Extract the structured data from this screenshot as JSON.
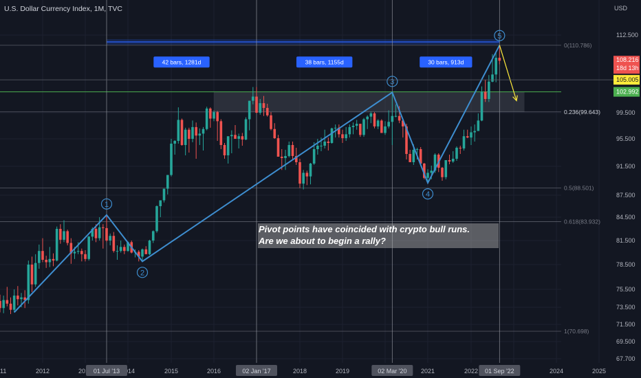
{
  "header": {
    "title": "U.S. Dollar Currency Index, 1M, TVC",
    "unit": "USD"
  },
  "annotation": {
    "line1": "Pivot points have coincided with crypto bull runs.",
    "line2": "Are we about to begin a rally?"
  },
  "colors": {
    "background": "#131722",
    "bull": "#26a69a",
    "bear": "#ef5350",
    "pattern": "#3e8ed0",
    "fib": "#787b86",
    "zone": "#4a4e58",
    "projection": "#ffeb3b"
  },
  "chart_data": {
    "type": "line",
    "series": [
      {
        "values": [
          {
            "x": "2011-05",
            "y": 72.9
          },
          {
            "x": "2013-07",
            "y": 84.8
          },
          {
            "x": "2014-05",
            "y": 78.9
          },
          {
            "x": "2020-03",
            "y": 102.9
          },
          {
            "x": "2021-01",
            "y": 89.2
          },
          {
            "x": "2022-09",
            "y": 110.8
          }
        ]
      },
      {
        "values": [
          {
            "x": "2022-09",
            "y": 110.8
          },
          {
            "x": "2023-01",
            "y": 101.5
          }
        ]
      }
    ],
    "pivot_labels": [
      "1",
      "2",
      "3",
      "4",
      "5"
    ],
    "y_ticks": [
      "112.500",
      "99.500",
      "95.500",
      "91.500",
      "87.500",
      "84.500",
      "81.500",
      "78.500",
      "75.500",
      "73.500",
      "71.500",
      "69.500",
      "67.700"
    ],
    "x_ticks": [
      "11",
      "2012",
      "2013",
      "2014",
      "2015",
      "2016",
      "2018",
      "2019",
      "2021",
      "2022",
      "2024",
      "2025"
    ],
    "vertical_markers": [
      "01 Jul '13",
      "02 Jan '17",
      "02 Mar '20",
      "01 Sep '22"
    ],
    "fib_levels": [
      {
        "label": "0(110.786)",
        "y": 110.786
      },
      {
        "label": "0.236(99.643)",
        "y": 99.643
      },
      {
        "label": "0.5(88.501)",
        "y": 88.501
      },
      {
        "label": "0.618(83.932)",
        "y": 83.932
      },
      {
        "label": "1(70.698)",
        "y": 70.698
      }
    ],
    "bar_counts": [
      "42 bars, 1281d",
      "38 bars, 1155d",
      "30 bars, 913d"
    ],
    "price_labels": [
      {
        "text": "108.216",
        "sub": "18d 13h",
        "color": "#ef5350",
        "y": 108.216
      },
      {
        "text": "105.005",
        "color": "#ffeb3b",
        "y": 105.005
      },
      {
        "text": "102.992",
        "color": "#4caf50",
        "y": 102.992
      }
    ],
    "zone": {
      "x": [
        "2016-01",
        "2023-04"
      ],
      "y": [
        99.6,
        103.0
      ]
    },
    "candles": [
      {
        "x": "2010-09",
        "o": 80.5,
        "h": 81.6,
        "l": 77.2,
        "c": 78.3
      },
      {
        "x": "2010-10",
        "o": 78.3,
        "h": 79.0,
        "l": 75.6,
        "c": 76.5
      },
      {
        "x": "2010-11",
        "o": 76.5,
        "h": 77.3,
        "l": 74.8,
        "c": 75.3
      },
      {
        "x": "2010-12",
        "o": 75.3,
        "h": 76.1,
        "l": 73.6,
        "c": 74.2
      },
      {
        "x": "2011-01",
        "o": 74.2,
        "h": 74.9,
        "l": 72.9,
        "c": 73.4
      },
      {
        "x": "2011-02",
        "o": 73.4,
        "h": 74.8,
        "l": 72.8,
        "c": 74.3
      },
      {
        "x": "2011-03",
        "o": 74.3,
        "h": 75.8,
        "l": 73.6,
        "c": 73.9
      },
      {
        "x": "2011-04",
        "o": 73.9,
        "h": 74.6,
        "l": 72.7,
        "c": 73.2
      },
      {
        "x": "2011-05",
        "o": 73.2,
        "h": 75.5,
        "l": 72.9,
        "c": 74.8
      },
      {
        "x": "2011-06",
        "o": 74.8,
        "h": 75.9,
        "l": 73.7,
        "c": 74.4
      },
      {
        "x": "2011-07",
        "o": 74.4,
        "h": 75.1,
        "l": 73.5,
        "c": 74.6
      },
      {
        "x": "2011-08",
        "o": 74.6,
        "h": 75.4,
        "l": 73.4,
        "c": 74.3
      },
      {
        "x": "2011-09",
        "o": 74.3,
        "h": 79.0,
        "l": 73.9,
        "c": 78.5
      },
      {
        "x": "2011-10",
        "o": 78.5,
        "h": 79.5,
        "l": 75.2,
        "c": 76.1
      },
      {
        "x": "2011-11",
        "o": 76.1,
        "h": 79.8,
        "l": 75.8,
        "c": 78.7
      },
      {
        "x": "2011-12",
        "o": 78.7,
        "h": 81.0,
        "l": 78.0,
        "c": 80.2
      },
      {
        "x": "2012-01",
        "o": 80.2,
        "h": 81.8,
        "l": 78.8,
        "c": 79.1
      },
      {
        "x": "2012-02",
        "o": 79.1,
        "h": 79.6,
        "l": 78.1,
        "c": 78.8
      },
      {
        "x": "2012-03",
        "o": 78.8,
        "h": 80.7,
        "l": 78.2,
        "c": 79.2
      },
      {
        "x": "2012-04",
        "o": 79.2,
        "h": 79.9,
        "l": 78.3,
        "c": 79.0
      },
      {
        "x": "2012-05",
        "o": 79.0,
        "h": 83.3,
        "l": 78.9,
        "c": 83.0
      },
      {
        "x": "2012-06",
        "o": 83.0,
        "h": 83.6,
        "l": 81.1,
        "c": 81.6
      },
      {
        "x": "2012-07",
        "o": 81.6,
        "h": 84.1,
        "l": 81.3,
        "c": 82.7
      },
      {
        "x": "2012-08",
        "o": 82.7,
        "h": 82.9,
        "l": 80.9,
        "c": 81.2
      },
      {
        "x": "2012-09",
        "o": 81.2,
        "h": 81.8,
        "l": 78.6,
        "c": 79.9
      },
      {
        "x": "2012-10",
        "o": 79.9,
        "h": 80.7,
        "l": 79.2,
        "c": 80.1
      },
      {
        "x": "2012-11",
        "o": 80.1,
        "h": 81.3,
        "l": 79.8,
        "c": 80.2
      },
      {
        "x": "2012-12",
        "o": 80.2,
        "h": 80.5,
        "l": 78.9,
        "c": 79.8
      },
      {
        "x": "2013-01",
        "o": 79.8,
        "h": 80.3,
        "l": 78.9,
        "c": 79.2
      },
      {
        "x": "2013-02",
        "o": 79.2,
        "h": 82.1,
        "l": 79.0,
        "c": 82.0
      },
      {
        "x": "2013-03",
        "o": 82.0,
        "h": 83.2,
        "l": 81.5,
        "c": 83.0
      },
      {
        "x": "2013-04",
        "o": 83.0,
        "h": 83.6,
        "l": 81.3,
        "c": 81.8
      },
      {
        "x": "2013-05",
        "o": 81.8,
        "h": 84.5,
        "l": 81.5,
        "c": 83.2
      },
      {
        "x": "2013-06",
        "o": 83.2,
        "h": 83.6,
        "l": 80.5,
        "c": 83.1
      },
      {
        "x": "2013-07",
        "o": 83.1,
        "h": 84.8,
        "l": 81.3,
        "c": 81.5
      },
      {
        "x": "2013-08",
        "o": 81.5,
        "h": 82.4,
        "l": 80.9,
        "c": 82.1
      },
      {
        "x": "2013-09",
        "o": 82.1,
        "h": 82.6,
        "l": 80.0,
        "c": 80.2
      },
      {
        "x": "2013-10",
        "o": 80.2,
        "h": 80.9,
        "l": 79.1,
        "c": 80.2
      },
      {
        "x": "2013-11",
        "o": 80.2,
        "h": 81.5,
        "l": 80.0,
        "c": 80.7
      },
      {
        "x": "2013-12",
        "o": 80.7,
        "h": 81.0,
        "l": 79.8,
        "c": 80.2
      },
      {
        "x": "2014-01",
        "o": 80.2,
        "h": 81.4,
        "l": 80.1,
        "c": 81.3
      },
      {
        "x": "2014-02",
        "o": 81.3,
        "h": 81.5,
        "l": 79.9,
        "c": 80.0
      },
      {
        "x": "2014-03",
        "o": 80.0,
        "h": 80.4,
        "l": 79.4,
        "c": 80.1
      },
      {
        "x": "2014-04",
        "o": 80.1,
        "h": 80.3,
        "l": 78.9,
        "c": 79.5
      },
      {
        "x": "2014-05",
        "o": 79.5,
        "h": 80.5,
        "l": 78.9,
        "c": 80.4
      },
      {
        "x": "2014-06",
        "o": 80.4,
        "h": 80.8,
        "l": 79.8,
        "c": 79.8
      },
      {
        "x": "2014-07",
        "o": 79.8,
        "h": 81.6,
        "l": 79.7,
        "c": 81.5
      },
      {
        "x": "2014-08",
        "o": 81.5,
        "h": 82.8,
        "l": 81.2,
        "c": 82.7
      },
      {
        "x": "2014-09",
        "o": 82.7,
        "h": 86.1,
        "l": 82.5,
        "c": 86.0
      },
      {
        "x": "2014-10",
        "o": 86.0,
        "h": 86.8,
        "l": 84.5,
        "c": 86.8
      },
      {
        "x": "2014-11",
        "o": 86.8,
        "h": 88.4,
        "l": 86.5,
        "c": 88.4
      },
      {
        "x": "2014-12",
        "o": 88.4,
        "h": 90.3,
        "l": 87.6,
        "c": 90.3
      },
      {
        "x": "2015-01",
        "o": 90.3,
        "h": 95.5,
        "l": 90.1,
        "c": 94.8
      },
      {
        "x": "2015-02",
        "o": 94.8,
        "h": 95.3,
        "l": 93.2,
        "c": 95.2
      },
      {
        "x": "2015-03",
        "o": 95.2,
        "h": 100.4,
        "l": 94.8,
        "c": 98.4
      },
      {
        "x": "2015-04",
        "o": 98.4,
        "h": 98.6,
        "l": 94.5,
        "c": 94.6
      },
      {
        "x": "2015-05",
        "o": 94.6,
        "h": 97.2,
        "l": 93.1,
        "c": 96.9
      },
      {
        "x": "2015-06",
        "o": 96.9,
        "h": 97.2,
        "l": 93.5,
        "c": 95.5
      },
      {
        "x": "2015-07",
        "o": 95.5,
        "h": 98.3,
        "l": 95.0,
        "c": 97.3
      },
      {
        "x": "2015-08",
        "o": 97.3,
        "h": 98.0,
        "l": 92.6,
        "c": 96.0
      },
      {
        "x": "2015-09",
        "o": 96.0,
        "h": 97.1,
        "l": 94.6,
        "c": 96.3
      },
      {
        "x": "2015-10",
        "o": 96.3,
        "h": 97.3,
        "l": 93.8,
        "c": 97.0
      },
      {
        "x": "2015-11",
        "o": 97.0,
        "h": 100.5,
        "l": 96.8,
        "c": 100.2
      },
      {
        "x": "2015-12",
        "o": 100.2,
        "h": 100.4,
        "l": 97.2,
        "c": 98.6
      },
      {
        "x": "2016-01",
        "o": 98.6,
        "h": 99.9,
        "l": 98.2,
        "c": 99.6
      },
      {
        "x": "2016-02",
        "o": 99.6,
        "h": 99.8,
        "l": 95.2,
        "c": 98.2
      },
      {
        "x": "2016-03",
        "o": 98.2,
        "h": 98.5,
        "l": 94.0,
        "c": 94.6
      },
      {
        "x": "2016-04",
        "o": 94.6,
        "h": 94.9,
        "l": 92.6,
        "c": 93.1
      },
      {
        "x": "2016-05",
        "o": 93.1,
        "h": 95.8,
        "l": 91.9,
        "c": 95.9
      },
      {
        "x": "2016-06",
        "o": 95.9,
        "h": 96.8,
        "l": 93.4,
        "c": 96.1
      },
      {
        "x": "2016-07",
        "o": 96.1,
        "h": 97.6,
        "l": 95.5,
        "c": 95.5
      },
      {
        "x": "2016-08",
        "o": 95.5,
        "h": 96.3,
        "l": 94.1,
        "c": 95.9
      },
      {
        "x": "2016-09",
        "o": 95.9,
        "h": 96.4,
        "l": 94.5,
        "c": 95.4
      },
      {
        "x": "2016-10",
        "o": 95.4,
        "h": 98.8,
        "l": 95.3,
        "c": 98.5
      },
      {
        "x": "2016-11",
        "o": 98.5,
        "h": 101.5,
        "l": 96.8,
        "c": 101.5
      },
      {
        "x": "2016-12",
        "o": 101.5,
        "h": 103.8,
        "l": 100.9,
        "c": 102.2
      },
      {
        "x": "2017-01",
        "o": 102.2,
        "h": 103.8,
        "l": 99.4,
        "c": 99.5
      },
      {
        "x": "2017-02",
        "o": 99.5,
        "h": 101.8,
        "l": 99.2,
        "c": 101.1
      },
      {
        "x": "2017-03",
        "o": 101.1,
        "h": 102.3,
        "l": 99.0,
        "c": 100.3
      },
      {
        "x": "2017-04",
        "o": 100.3,
        "h": 101.0,
        "l": 98.9,
        "c": 99.1
      },
      {
        "x": "2017-05",
        "o": 99.1,
        "h": 99.6,
        "l": 96.8,
        "c": 97.0
      },
      {
        "x": "2017-06",
        "o": 97.0,
        "h": 97.9,
        "l": 95.5,
        "c": 95.6
      },
      {
        "x": "2017-07",
        "o": 95.6,
        "h": 96.1,
        "l": 92.9,
        "c": 92.9
      },
      {
        "x": "2017-08",
        "o": 92.9,
        "h": 94.0,
        "l": 91.0,
        "c": 92.7
      },
      {
        "x": "2017-09",
        "o": 92.7,
        "h": 93.9,
        "l": 91.0,
        "c": 93.0
      },
      {
        "x": "2017-10",
        "o": 93.0,
        "h": 95.1,
        "l": 92.8,
        "c": 94.6
      },
      {
        "x": "2017-11",
        "o": 94.6,
        "h": 95.1,
        "l": 92.5,
        "c": 93.0
      },
      {
        "x": "2017-12",
        "o": 93.0,
        "h": 94.2,
        "l": 91.7,
        "c": 92.1
      },
      {
        "x": "2018-01",
        "o": 92.1,
        "h": 92.6,
        "l": 88.5,
        "c": 89.1
      },
      {
        "x": "2018-02",
        "o": 89.1,
        "h": 91.0,
        "l": 88.3,
        "c": 90.6
      },
      {
        "x": "2018-03",
        "o": 90.6,
        "h": 90.9,
        "l": 88.9,
        "c": 90.1
      },
      {
        "x": "2018-04",
        "o": 90.1,
        "h": 92.0,
        "l": 89.0,
        "c": 91.9
      },
      {
        "x": "2018-05",
        "o": 91.9,
        "h": 95.0,
        "l": 91.7,
        "c": 94.0
      },
      {
        "x": "2018-06",
        "o": 94.0,
        "h": 95.5,
        "l": 93.2,
        "c": 94.5
      },
      {
        "x": "2018-07",
        "o": 94.5,
        "h": 95.7,
        "l": 93.7,
        "c": 94.5
      },
      {
        "x": "2018-08",
        "o": 94.5,
        "h": 96.9,
        "l": 94.1,
        "c": 95.1
      },
      {
        "x": "2018-09",
        "o": 95.1,
        "h": 95.7,
        "l": 93.8,
        "c": 94.9
      },
      {
        "x": "2018-10",
        "o": 94.9,
        "h": 97.2,
        "l": 94.8,
        "c": 97.1
      },
      {
        "x": "2018-11",
        "o": 97.1,
        "h": 97.7,
        "l": 95.7,
        "c": 97.2
      },
      {
        "x": "2018-12",
        "o": 97.2,
        "h": 97.7,
        "l": 95.7,
        "c": 96.2
      },
      {
        "x": "2019-01",
        "o": 96.2,
        "h": 96.9,
        "l": 94.9,
        "c": 95.6
      },
      {
        "x": "2019-02",
        "o": 95.6,
        "h": 97.3,
        "l": 95.2,
        "c": 96.2
      },
      {
        "x": "2019-03",
        "o": 96.2,
        "h": 97.7,
        "l": 95.7,
        "c": 97.3
      },
      {
        "x": "2019-04",
        "o": 97.3,
        "h": 98.0,
        "l": 96.2,
        "c": 97.5
      },
      {
        "x": "2019-05",
        "o": 97.5,
        "h": 98.4,
        "l": 96.9,
        "c": 97.8
      },
      {
        "x": "2019-06",
        "o": 97.8,
        "h": 97.8,
        "l": 95.8,
        "c": 96.1
      },
      {
        "x": "2019-07",
        "o": 96.1,
        "h": 98.7,
        "l": 95.8,
        "c": 98.5
      },
      {
        "x": "2019-08",
        "o": 98.5,
        "h": 99.1,
        "l": 97.0,
        "c": 98.9
      },
      {
        "x": "2019-09",
        "o": 98.9,
        "h": 99.7,
        "l": 97.9,
        "c": 99.4
      },
      {
        "x": "2019-10",
        "o": 99.4,
        "h": 99.6,
        "l": 97.1,
        "c": 97.4
      },
      {
        "x": "2019-11",
        "o": 97.4,
        "h": 98.5,
        "l": 97.0,
        "c": 98.3
      },
      {
        "x": "2019-12",
        "o": 98.3,
        "h": 98.5,
        "l": 96.4,
        "c": 96.4
      },
      {
        "x": "2020-01",
        "o": 96.4,
        "h": 98.2,
        "l": 96.1,
        "c": 97.4
      },
      {
        "x": "2020-02",
        "o": 97.4,
        "h": 99.9,
        "l": 97.1,
        "c": 98.1
      },
      {
        "x": "2020-03",
        "o": 98.1,
        "h": 102.9,
        "l": 94.6,
        "c": 99.0
      },
      {
        "x": "2020-04",
        "o": 99.0,
        "h": 100.9,
        "l": 98.8,
        "c": 99.0
      },
      {
        "x": "2020-05",
        "o": 99.0,
        "h": 100.6,
        "l": 97.9,
        "c": 98.3
      },
      {
        "x": "2020-06",
        "o": 98.3,
        "h": 98.6,
        "l": 95.7,
        "c": 97.4
      },
      {
        "x": "2020-07",
        "o": 97.4,
        "h": 97.8,
        "l": 92.5,
        "c": 93.3
      },
      {
        "x": "2020-08",
        "o": 93.3,
        "h": 93.9,
        "l": 92.1,
        "c": 92.1
      },
      {
        "x": "2020-09",
        "o": 92.1,
        "h": 94.7,
        "l": 91.7,
        "c": 93.9
      },
      {
        "x": "2020-10",
        "o": 93.9,
        "h": 94.2,
        "l": 92.5,
        "c": 94.0
      },
      {
        "x": "2020-11",
        "o": 94.0,
        "h": 94.3,
        "l": 91.7,
        "c": 91.9
      },
      {
        "x": "2020-12",
        "o": 91.9,
        "h": 92.0,
        "l": 89.7,
        "c": 89.9
      },
      {
        "x": "2021-01",
        "o": 89.9,
        "h": 91.1,
        "l": 89.2,
        "c": 90.6
      },
      {
        "x": "2021-02",
        "o": 90.6,
        "h": 91.6,
        "l": 89.7,
        "c": 90.9
      },
      {
        "x": "2021-03",
        "o": 90.9,
        "h": 93.4,
        "l": 90.6,
        "c": 93.2
      },
      {
        "x": "2021-04",
        "o": 93.2,
        "h": 93.4,
        "l": 90.7,
        "c": 91.3
      },
      {
        "x": "2021-05",
        "o": 91.3,
        "h": 91.4,
        "l": 89.5,
        "c": 90.0
      },
      {
        "x": "2021-06",
        "o": 90.0,
        "h": 92.4,
        "l": 89.7,
        "c": 92.4
      },
      {
        "x": "2021-07",
        "o": 92.4,
        "h": 93.2,
        "l": 91.8,
        "c": 92.2
      },
      {
        "x": "2021-08",
        "o": 92.2,
        "h": 93.7,
        "l": 92.0,
        "c": 92.6
      },
      {
        "x": "2021-09",
        "o": 92.6,
        "h": 94.4,
        "l": 92.3,
        "c": 94.2
      },
      {
        "x": "2021-10",
        "o": 94.2,
        "h": 94.5,
        "l": 93.3,
        "c": 94.1
      },
      {
        "x": "2021-11",
        "o": 94.1,
        "h": 96.9,
        "l": 93.8,
        "c": 95.9
      },
      {
        "x": "2021-12",
        "o": 95.9,
        "h": 96.9,
        "l": 95.6,
        "c": 95.7
      },
      {
        "x": "2022-01",
        "o": 95.7,
        "h": 97.4,
        "l": 94.6,
        "c": 96.5
      },
      {
        "x": "2022-02",
        "o": 96.5,
        "h": 97.7,
        "l": 95.1,
        "c": 96.7
      },
      {
        "x": "2022-03",
        "o": 96.7,
        "h": 99.4,
        "l": 96.9,
        "c": 98.3
      },
      {
        "x": "2022-04",
        "o": 98.3,
        "h": 103.9,
        "l": 98.2,
        "c": 103.0
      },
      {
        "x": "2022-05",
        "o": 103.0,
        "h": 105.0,
        "l": 101.3,
        "c": 101.8
      },
      {
        "x": "2022-06",
        "o": 101.8,
        "h": 105.8,
        "l": 101.3,
        "c": 104.7
      },
      {
        "x": "2022-07",
        "o": 104.7,
        "h": 109.3,
        "l": 104.6,
        "c": 105.9
      },
      {
        "x": "2022-08",
        "o": 105.9,
        "h": 109.5,
        "l": 104.6,
        "c": 108.7
      },
      {
        "x": "2022-09",
        "o": 108.7,
        "h": 110.8,
        "l": 107.6,
        "c": 108.2
      }
    ]
  }
}
